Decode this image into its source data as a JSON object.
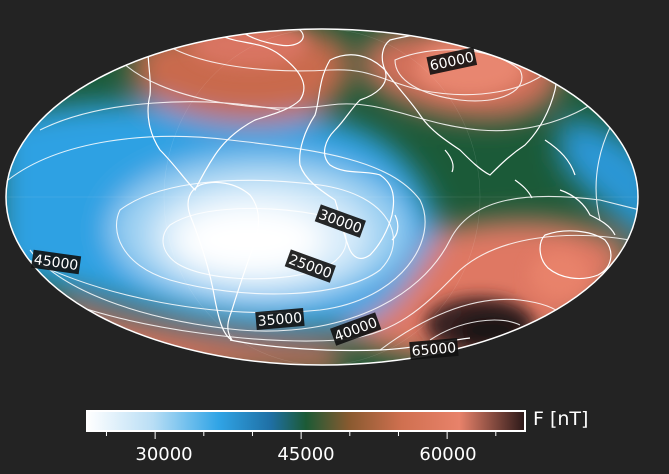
{
  "map": {
    "projection": "mollweide",
    "background_color": "#232323",
    "coastline_color": "#ffffff",
    "contour_color": "#ffffff",
    "contour_labels": [
      "60000",
      "30000",
      "25000",
      "45000",
      "35000",
      "40000",
      "65000"
    ]
  },
  "colorbar": {
    "title": "F [nT]",
    "range": [
      23000,
      68000
    ],
    "tick_labels": [
      "30000",
      "45000",
      "60000"
    ],
    "tick_values": [
      30000,
      45000,
      60000
    ],
    "colormap": [
      "#ffffff",
      "#b9def5",
      "#30a4e6",
      "#1f6fa4",
      "#1c5a35",
      "#8a5a30",
      "#d07050",
      "#e8826a",
      "#2a1818"
    ]
  }
}
